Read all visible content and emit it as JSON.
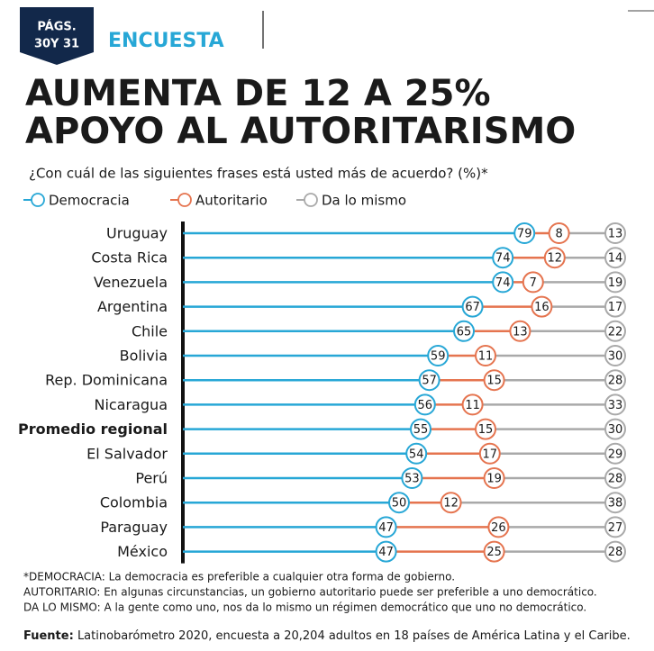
{
  "chart_data": {
    "type": "bar",
    "stacked": true,
    "orientation": "horizontal",
    "badge": [
      "PÁGS.",
      "30Y 31"
    ],
    "section": "ENCUESTA",
    "title": [
      "AUMENTA DE 12 A 25%",
      "APOYO AL AUTORITARISMO"
    ],
    "subtitle": "¿Con cuál de las siguientes frases está usted más de acuerdo? (%)*",
    "categories": [
      "Uruguay",
      "Costa Rica",
      "Venezuela",
      "Argentina",
      "Chile",
      "Bolivia",
      "Rep. Dominicana",
      "Nicaragua",
      "Promedio regional",
      "El Salvador",
      "Perú",
      "Colombia",
      "Paraguay",
      "México"
    ],
    "highlight": 8,
    "series": [
      {
        "name": "Democracia",
        "color": "#27a7d6",
        "values": [
          79,
          74,
          74,
          67,
          65,
          59,
          57,
          56,
          55,
          54,
          53,
          50,
          47,
          47
        ]
      },
      {
        "name": "Autoritario",
        "color": "#e5744f",
        "values": [
          8,
          12,
          7,
          16,
          13,
          11,
          15,
          11,
          15,
          17,
          19,
          12,
          26,
          25
        ]
      },
      {
        "name": "Da lo mismo",
        "color": "#a9a9a9",
        "values": [
          13,
          14,
          19,
          17,
          22,
          30,
          28,
          33,
          30,
          29,
          28,
          38,
          27,
          28
        ]
      }
    ],
    "xlim": [
      0,
      100
    ],
    "notes": [
      "*DEMOCRACIA: La democracia es preferible a cualquier otra forma de gobierno.",
      "AUTORITARIO: En algunas circunstancias, un gobierno autoritario puede ser preferible a uno democrático.",
      "DA LO MISMO: A la gente como uno, nos da lo mismo un régimen democrático que uno no democrático."
    ],
    "source": {
      "label": "Fuente:",
      "text": "Latinobarómetro 2020, encuesta a 20,204 adultos en 18 países de América Latina y el Caribe."
    }
  }
}
